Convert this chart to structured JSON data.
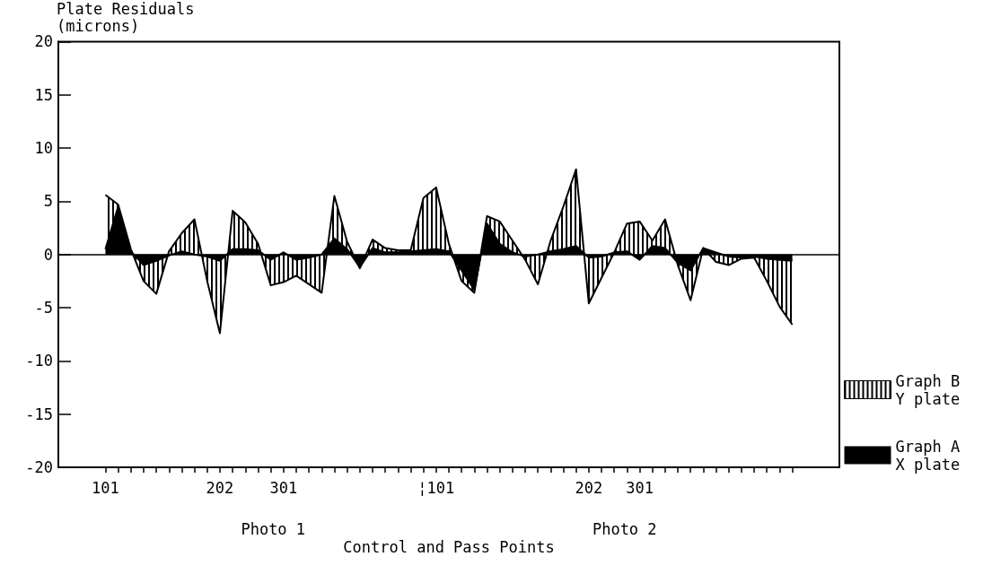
{
  "chart_data": {
    "type": "area",
    "ylabel": "Plate Residuals\n(microns)",
    "xlabel": "Control and Pass Points",
    "annotations": [
      "Photo 1",
      "Photo 2"
    ],
    "categories": [
      "101",
      null,
      null,
      null,
      null,
      null,
      null,
      null,
      null,
      "202",
      null,
      null,
      null,
      null,
      "301",
      null,
      null,
      null,
      null,
      null,
      null,
      null,
      null,
      null,
      null,
      null,
      "¦101",
      null,
      null,
      null,
      null,
      null,
      null,
      null,
      null,
      null,
      null,
      null,
      "202",
      null,
      null,
      null,
      "301",
      null,
      null,
      null,
      null,
      null,
      null,
      null,
      null,
      null,
      null,
      null,
      null
    ],
    "series": [
      {
        "name": "Graph B\nY plate",
        "color": "#000000",
        "values": [
          5.6,
          4.7,
          0.5,
          -2.5,
          -3.7,
          0.3,
          2.0,
          3.3,
          -2.5,
          -7.4,
          4.1,
          3.0,
          1.0,
          -2.9,
          -2.6,
          -2.0,
          -2.8,
          -3.6,
          5.5,
          1.2,
          -1.3,
          1.4,
          0.6,
          0.4,
          0.4,
          5.3,
          6.3,
          1.0,
          -2.5,
          -3.6,
          3.6,
          3.1,
          1.3,
          -0.5,
          -2.8,
          1.3,
          4.5,
          8.0,
          -4.6,
          -2.2,
          0.2,
          2.9,
          3.1,
          1.3,
          3.3,
          -1.0,
          -4.3,
          0.6,
          -0.7,
          -1.0,
          -0.4,
          -0.3,
          -2.5,
          -4.9,
          -6.6
        ]
      },
      {
        "name": "Graph A\nX plate",
        "color": "#000000",
        "values": [
          0.5,
          4.5,
          0.3,
          -1.0,
          -0.6,
          -0.1,
          0.3,
          0.0,
          -0.2,
          -0.6,
          0.5,
          0.5,
          0.4,
          -0.5,
          0.2,
          -0.5,
          -0.3,
          0.0,
          1.5,
          0.5,
          -1.2,
          0.6,
          0.2,
          0.2,
          0.3,
          0.4,
          0.5,
          0.3,
          -1.5,
          -3.3,
          2.9,
          1.0,
          0.2,
          -0.2,
          0.0,
          0.3,
          0.5,
          0.8,
          -0.3,
          -0.2,
          0.2,
          0.3,
          -0.5,
          0.8,
          0.6,
          -0.8,
          -1.5,
          0.6,
          0.2,
          -0.2,
          -0.3,
          -0.2,
          -0.4,
          -0.5,
          -0.6
        ]
      }
    ],
    "ylim": [
      -20,
      20
    ],
    "yticks": [
      -20,
      -15,
      -10,
      -5,
      0,
      5,
      10,
      15,
      20
    ],
    "ref_lines": [
      {
        "axis": "y",
        "value": 0
      }
    ],
    "legend": "bottom right",
    "grid": false,
    "marker": "none"
  }
}
